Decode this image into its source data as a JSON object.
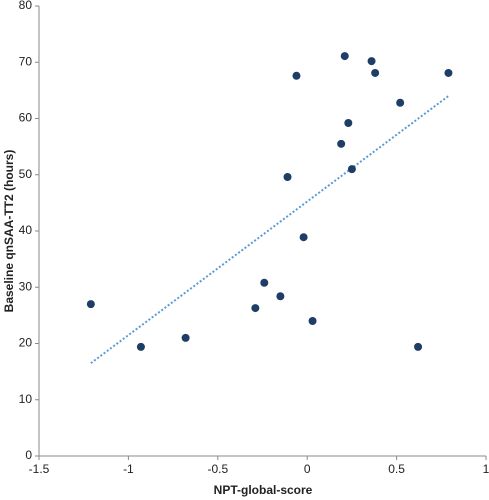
{
  "chart_data": {
    "type": "scatter",
    "x_label": "NPT-global-score",
    "y_label": "Baseline qnSAA-TT2 (hours)",
    "xlim": [
      -1.5,
      1
    ],
    "xticks": [
      -1.5,
      -1,
      -0.5,
      0,
      0.5,
      1
    ],
    "ylim": [
      0,
      80
    ],
    "yticks": [
      0,
      10,
      20,
      30,
      40,
      50,
      60,
      70,
      80
    ],
    "grid": false,
    "series": [
      {
        "color": "#1f3e66",
        "x": [
          -1.21,
          -0.93,
          -0.68,
          -0.29,
          -0.24,
          -0.15,
          -0.11,
          -0.06,
          -0.02,
          0.03,
          0.19,
          0.21,
          0.23,
          0.25,
          0.36,
          0.38,
          0.52,
          0.62,
          0.79
        ],
        "values": [
          27,
          19.4,
          21,
          26.3,
          30.8,
          28.4,
          49.6,
          67.6,
          38.9,
          24,
          55.5,
          71.1,
          59.2,
          51,
          70.2,
          68.1,
          62.8,
          19.4,
          68.1
        ]
      }
    ],
    "trendline": {
      "x": [
        -1.21,
        0.79
      ],
      "y": [
        16.5,
        64
      ],
      "color": "#5b9bd5"
    }
  }
}
